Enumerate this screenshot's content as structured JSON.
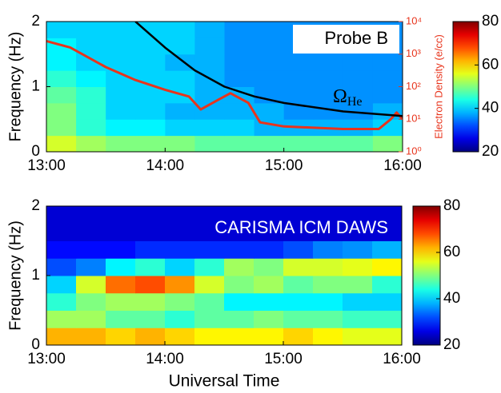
{
  "chart_data": [
    {
      "type": "heatmap",
      "annotation": "Probe B",
      "curve_label": {
        "symbol": "Ω",
        "subscript": "He"
      },
      "ylabel": "Frequency (Hz)",
      "y2label": "Electron Density (e/cc)",
      "xlim": [
        13,
        16
      ],
      "xticks": [
        {
          "value": 13,
          "label": "13:00"
        },
        {
          "value": 14,
          "label": "14:00"
        },
        {
          "value": 15,
          "label": "15:00"
        },
        {
          "value": 16,
          "label": "16:00"
        }
      ],
      "ylim": [
        0,
        2
      ],
      "yticks": [
        0,
        1,
        2
      ],
      "y2lim": [
        1,
        10000
      ],
      "y2log": true,
      "y2ticks": [
        {
          "value": 1,
          "label": "10⁰"
        },
        {
          "value": 10,
          "label": "10¹"
        },
        {
          "value": 100,
          "label": "10²"
        },
        {
          "value": 1000,
          "label": "10³"
        },
        {
          "value": 10000,
          "label": "10⁴"
        }
      ],
      "clim": [
        20,
        80
      ],
      "cticks": [
        20,
        40,
        60,
        80
      ],
      "bins_x": [
        13,
        13.25,
        13.5,
        13.75,
        14,
        14.25,
        14.5,
        14.75,
        15,
        15.25,
        15.5,
        15.75,
        16
      ],
      "bins_y": [
        0,
        0.25,
        0.5,
        0.75,
        1,
        1.25,
        1.5,
        1.75,
        2
      ],
      "z": [
        [
          55,
          52,
          50,
          50,
          50,
          48,
          48,
          48,
          48,
          48,
          48,
          50
        ],
        [
          50,
          45,
          42,
          42,
          40,
          40,
          40,
          38,
          38,
          38,
          38,
          40
        ],
        [
          50,
          45,
          40,
          40,
          38,
          38,
          38,
          38,
          36,
          36,
          36,
          38
        ],
        [
          48,
          45,
          40,
          40,
          40,
          38,
          38,
          36,
          36,
          36,
          36,
          36
        ],
        [
          45,
          42,
          40,
          40,
          40,
          38,
          36,
          36,
          36,
          36,
          36,
          36
        ],
        [
          42,
          40,
          40,
          40,
          38,
          38,
          36,
          36,
          36,
          36,
          36,
          36
        ],
        [
          42,
          40,
          40,
          40,
          40,
          38,
          36,
          36,
          36,
          36,
          36,
          36
        ],
        [
          40,
          40,
          40,
          40,
          40,
          38,
          36,
          36,
          36,
          36,
          36,
          36
        ]
      ],
      "series": [
        {
          "name": "Electron Density",
          "color": "#e8341c",
          "axis": "y2",
          "x": [
            13,
            13.2,
            13.5,
            13.75,
            14,
            14.2,
            14.3,
            14.45,
            14.55,
            14.7,
            14.8,
            15,
            15.5,
            15.8,
            15.9,
            15.95,
            16
          ],
          "values": [
            2500,
            1600,
            400,
            160,
            80,
            50,
            20,
            40,
            63,
            32,
            8,
            6,
            5,
            5,
            10,
            16,
            10
          ]
        },
        {
          "name": "ΩHe",
          "color": "#000000",
          "x": [
            13.75,
            14,
            14.25,
            14.5,
            14.75,
            15,
            15.5,
            16
          ],
          "values": [
            2,
            1.6,
            1.25,
            1,
            0.85,
            0.75,
            0.62,
            0.55
          ]
        }
      ]
    },
    {
      "type": "heatmap",
      "annotation": "CARISMA ICM DAWS",
      "ylabel": "Frequency (Hz)",
      "xlabel": "Universal Time",
      "xlim": [
        13,
        16
      ],
      "xticks": [
        {
          "value": 13,
          "label": "13:00"
        },
        {
          "value": 14,
          "label": "14:00"
        },
        {
          "value": 15,
          "label": "15:00"
        },
        {
          "value": 16,
          "label": "16:00"
        }
      ],
      "ylim": [
        0,
        2
      ],
      "yticks": [
        0,
        1,
        2
      ],
      "clim": [
        20,
        80
      ],
      "cticks": [
        20,
        40,
        60,
        80
      ],
      "bins_x": [
        13,
        13.25,
        13.5,
        13.75,
        14,
        14.25,
        14.5,
        14.75,
        15,
        15.25,
        15.5,
        15.75,
        16
      ],
      "bins_y": [
        0,
        0.25,
        0.5,
        0.75,
        1,
        1.25,
        1.5,
        1.75,
        2
      ],
      "z": [
        [
          62,
          62,
          60,
          62,
          60,
          58,
          58,
          58,
          60,
          58,
          56,
          56
        ],
        [
          52,
          52,
          48,
          48,
          45,
          48,
          48,
          50,
          48,
          48,
          46,
          46
        ],
        [
          45,
          50,
          52,
          52,
          50,
          48,
          42,
          42,
          42,
          42,
          40,
          40
        ],
        [
          40,
          55,
          66,
          68,
          64,
          55,
          50,
          52,
          48,
          50,
          50,
          45
        ],
        [
          32,
          35,
          42,
          45,
          40,
          45,
          52,
          50,
          55,
          55,
          56,
          58
        ],
        [
          28,
          28,
          28,
          30,
          30,
          30,
          30,
          30,
          32,
          35,
          36,
          38
        ],
        [
          25,
          25,
          25,
          25,
          25,
          25,
          25,
          25,
          25,
          25,
          25,
          25
        ],
        [
          25,
          25,
          25,
          25,
          25,
          25,
          25,
          25,
          25,
          25,
          25,
          25
        ]
      ]
    }
  ]
}
